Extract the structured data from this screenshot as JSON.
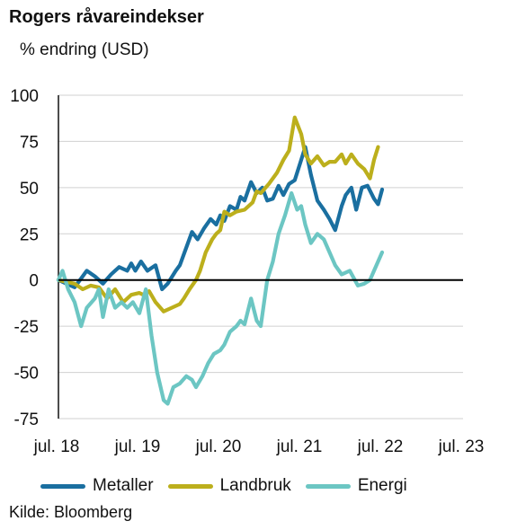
{
  "title": "Rogers råvareindekser",
  "subtitle": "% endring (USD)",
  "source": "Kilde: Bloomberg",
  "chart_data": {
    "type": "line",
    "title": "Rogers råvareindekser",
    "ylabel": "% endring (USD)",
    "xlabel": "",
    "ylim": [
      -75,
      100
    ],
    "yticks": [
      100,
      75,
      50,
      25,
      0,
      -25,
      -50,
      -75
    ],
    "xticks": [
      {
        "x": 2018.5,
        "label": "jul. 18"
      },
      {
        "x": 2019.5,
        "label": "jul. 19"
      },
      {
        "x": 2020.5,
        "label": "jul. 20"
      },
      {
        "x": 2021.5,
        "label": "jul. 21"
      },
      {
        "x": 2022.5,
        "label": "jul. 22"
      },
      {
        "x": 2023.5,
        "label": "jul. 23"
      }
    ],
    "legend_position": "bottom",
    "series": [
      {
        "name": "Metaller",
        "color": "#1a6fa0",
        "points": [
          [
            2018.5,
            0
          ],
          [
            2018.6,
            -2
          ],
          [
            2018.7,
            -4
          ],
          [
            2018.85,
            5
          ],
          [
            2018.95,
            2
          ],
          [
            2019.05,
            -2
          ],
          [
            2019.15,
            3
          ],
          [
            2019.25,
            7
          ],
          [
            2019.35,
            5
          ],
          [
            2019.4,
            9
          ],
          [
            2019.45,
            5
          ],
          [
            2019.52,
            10
          ],
          [
            2019.6,
            5
          ],
          [
            2019.7,
            8
          ],
          [
            2019.78,
            -5
          ],
          [
            2019.85,
            -2
          ],
          [
            2019.95,
            5
          ],
          [
            2020.0,
            8
          ],
          [
            2020.1,
            20
          ],
          [
            2020.15,
            26
          ],
          [
            2020.22,
            22
          ],
          [
            2020.3,
            28
          ],
          [
            2020.38,
            33
          ],
          [
            2020.45,
            30
          ],
          [
            2020.5,
            35
          ],
          [
            2020.55,
            32
          ],
          [
            2020.62,
            40
          ],
          [
            2020.7,
            38
          ],
          [
            2020.75,
            45
          ],
          [
            2020.8,
            43
          ],
          [
            2020.88,
            53
          ],
          [
            2020.95,
            47
          ],
          [
            2021.02,
            50
          ],
          [
            2021.08,
            43
          ],
          [
            2021.15,
            44
          ],
          [
            2021.22,
            51
          ],
          [
            2021.28,
            46
          ],
          [
            2021.35,
            52
          ],
          [
            2021.42,
            54
          ],
          [
            2021.5,
            65
          ],
          [
            2021.55,
            72
          ],
          [
            2021.62,
            57
          ],
          [
            2021.7,
            43
          ],
          [
            2021.78,
            38
          ],
          [
            2021.85,
            33
          ],
          [
            2021.92,
            27
          ],
          [
            2022.0,
            40
          ],
          [
            2022.05,
            46
          ],
          [
            2022.12,
            50
          ],
          [
            2022.18,
            38
          ],
          [
            2022.25,
            50
          ],
          [
            2022.32,
            51
          ],
          [
            2022.4,
            44
          ],
          [
            2022.45,
            41
          ],
          [
            2022.5,
            49
          ]
        ]
      },
      {
        "name": "Landbruk",
        "color": "#bcaf1c",
        "points": [
          [
            2018.5,
            0
          ],
          [
            2018.6,
            -1
          ],
          [
            2018.7,
            -2
          ],
          [
            2018.8,
            -5
          ],
          [
            2018.9,
            -3
          ],
          [
            2019.0,
            -4
          ],
          [
            2019.1,
            -10
          ],
          [
            2019.2,
            -5
          ],
          [
            2019.3,
            -12
          ],
          [
            2019.4,
            -8
          ],
          [
            2019.5,
            -7
          ],
          [
            2019.55,
            -8
          ],
          [
            2019.62,
            -6
          ],
          [
            2019.7,
            -12
          ],
          [
            2019.8,
            -17
          ],
          [
            2019.9,
            -15
          ],
          [
            2020.0,
            -13
          ],
          [
            2020.05,
            -10
          ],
          [
            2020.12,
            -5
          ],
          [
            2020.2,
            0
          ],
          [
            2020.25,
            5
          ],
          [
            2020.32,
            15
          ],
          [
            2020.4,
            22
          ],
          [
            2020.45,
            25
          ],
          [
            2020.5,
            27
          ],
          [
            2020.55,
            37
          ],
          [
            2020.62,
            35
          ],
          [
            2020.7,
            37
          ],
          [
            2020.8,
            38
          ],
          [
            2020.9,
            42
          ],
          [
            2020.95,
            48
          ],
          [
            2021.0,
            47
          ],
          [
            2021.1,
            52
          ],
          [
            2021.2,
            58
          ],
          [
            2021.28,
            65
          ],
          [
            2021.35,
            70
          ],
          [
            2021.42,
            88
          ],
          [
            2021.5,
            79
          ],
          [
            2021.55,
            68
          ],
          [
            2021.62,
            63
          ],
          [
            2021.7,
            67
          ],
          [
            2021.78,
            62
          ],
          [
            2021.85,
            64
          ],
          [
            2021.92,
            64
          ],
          [
            2022.0,
            68
          ],
          [
            2022.05,
            63
          ],
          [
            2022.12,
            68
          ],
          [
            2022.2,
            63
          ],
          [
            2022.28,
            60
          ],
          [
            2022.35,
            55
          ],
          [
            2022.4,
            65
          ],
          [
            2022.45,
            72
          ]
        ]
      },
      {
        "name": "Energi",
        "color": "#6cc6c3",
        "points": [
          [
            2018.5,
            0
          ],
          [
            2018.55,
            5
          ],
          [
            2018.62,
            -5
          ],
          [
            2018.7,
            -12
          ],
          [
            2018.78,
            -25
          ],
          [
            2018.85,
            -15
          ],
          [
            2018.95,
            -10
          ],
          [
            2019.0,
            -5
          ],
          [
            2019.05,
            -20
          ],
          [
            2019.12,
            -5
          ],
          [
            2019.2,
            -15
          ],
          [
            2019.28,
            -12
          ],
          [
            2019.35,
            -15
          ],
          [
            2019.42,
            -12
          ],
          [
            2019.5,
            -18
          ],
          [
            2019.58,
            -5
          ],
          [
            2019.65,
            -30
          ],
          [
            2019.72,
            -50
          ],
          [
            2019.8,
            -65
          ],
          [
            2019.85,
            -67
          ],
          [
            2019.92,
            -58
          ],
          [
            2020.0,
            -56
          ],
          [
            2020.08,
            -52
          ],
          [
            2020.15,
            -54
          ],
          [
            2020.2,
            -58
          ],
          [
            2020.28,
            -52
          ],
          [
            2020.35,
            -45
          ],
          [
            2020.42,
            -40
          ],
          [
            2020.5,
            -38
          ],
          [
            2020.55,
            -35
          ],
          [
            2020.62,
            -28
          ],
          [
            2020.7,
            -25
          ],
          [
            2020.75,
            -22
          ],
          [
            2020.8,
            -24
          ],
          [
            2020.88,
            -10
          ],
          [
            2020.95,
            -22
          ],
          [
            2021.0,
            -25
          ],
          [
            2021.08,
            0
          ],
          [
            2021.15,
            10
          ],
          [
            2021.22,
            25
          ],
          [
            2021.3,
            35
          ],
          [
            2021.38,
            47
          ],
          [
            2021.45,
            38
          ],
          [
            2021.5,
            40
          ],
          [
            2021.55,
            30
          ],
          [
            2021.62,
            20
          ],
          [
            2021.7,
            25
          ],
          [
            2021.78,
            22
          ],
          [
            2021.85,
            15
          ],
          [
            2021.92,
            8
          ],
          [
            2022.0,
            3
          ],
          [
            2022.1,
            5
          ],
          [
            2022.2,
            -3
          ],
          [
            2022.28,
            -2
          ],
          [
            2022.35,
            0
          ],
          [
            2022.4,
            5
          ],
          [
            2022.5,
            15
          ]
        ]
      }
    ]
  }
}
